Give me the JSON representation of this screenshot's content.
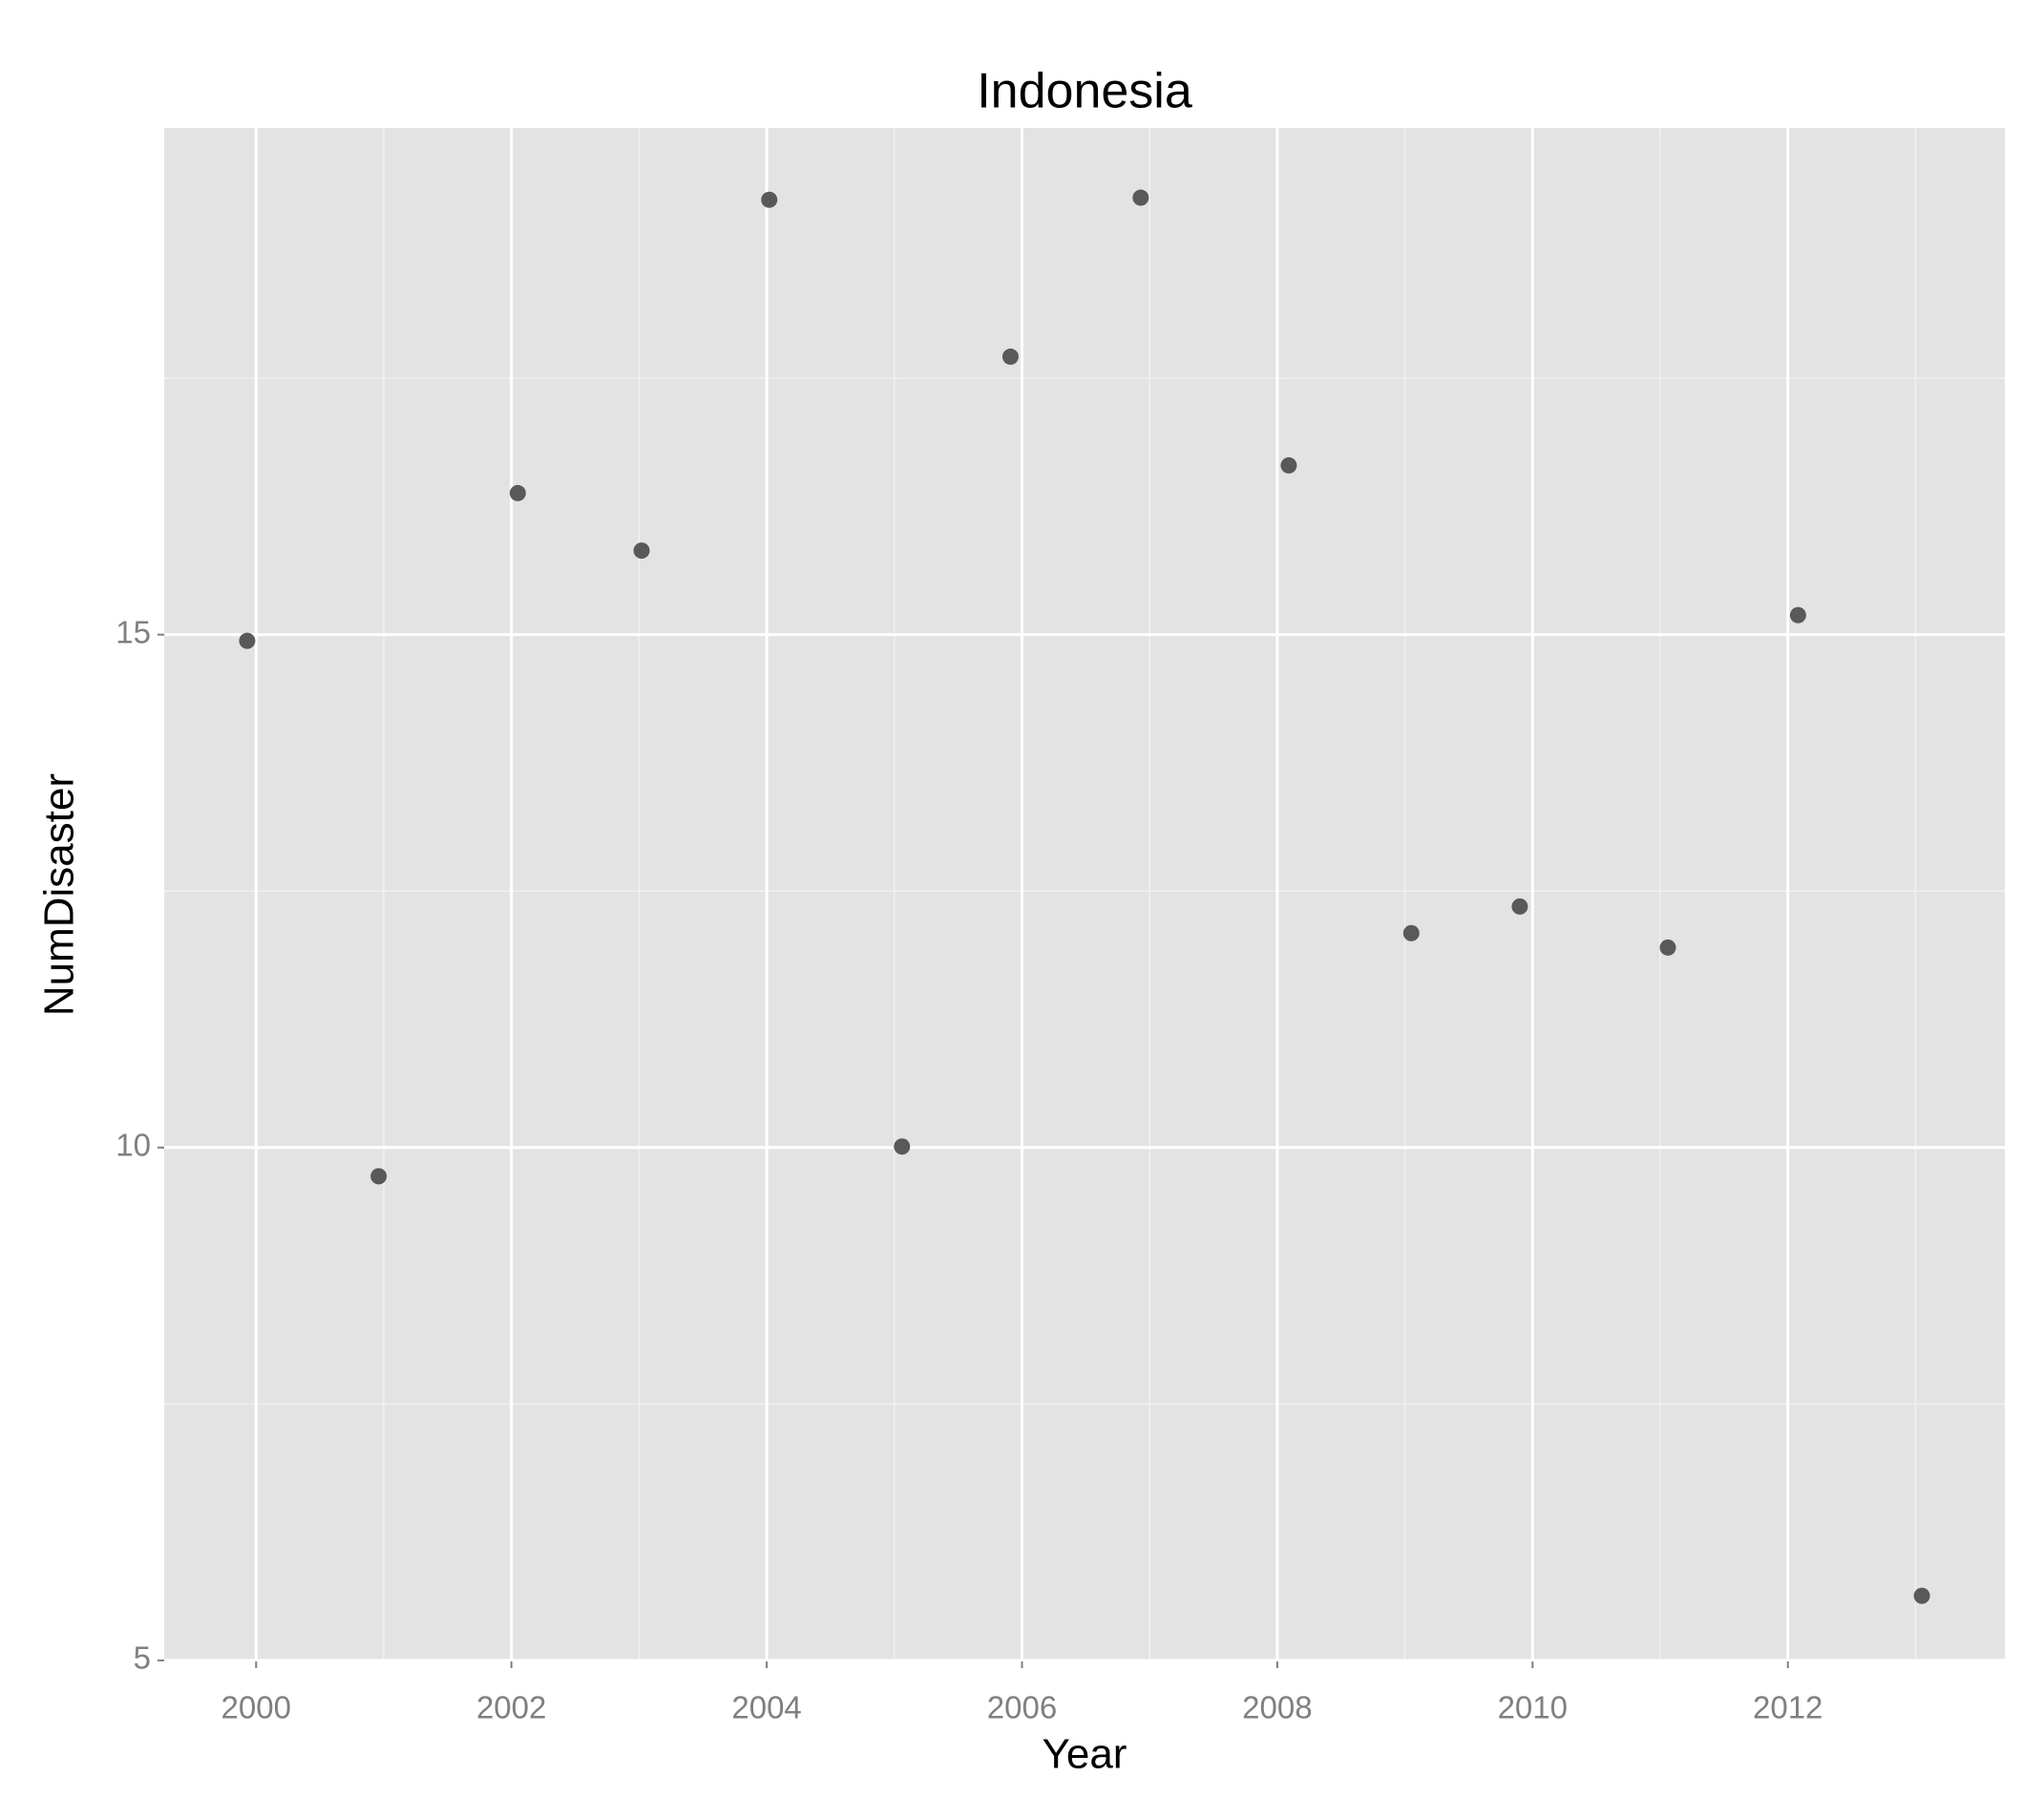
{
  "chart_data": {
    "type": "scatter",
    "title": "Indonesia",
    "x_label": "Year",
    "y_label": "NumDisaster",
    "x": [
      1999.93,
      2000.96,
      2002.05,
      2003.02,
      2004.02,
      2005.06,
      2005.91,
      2006.93,
      2008.09,
      2009.05,
      2009.9,
      2011.06,
      2012.08,
      2013.05
    ],
    "values": [
      14.94,
      9.72,
      16.38,
      15.82,
      19.24,
      10.01,
      17.71,
      19.26,
      16.65,
      12.09,
      12.35,
      11.95,
      15.19,
      5.63
    ],
    "color": "#595959",
    "xlim": [
      1999.28,
      2013.7
    ],
    "xticks": [
      2000,
      2002,
      2004,
      2006,
      2008,
      2010,
      2012
    ],
    "minor_xticks": [
      2001,
      2003,
      2005,
      2007,
      2009,
      2011,
      2013
    ],
    "ylim": [
      4.99,
      19.94
    ],
    "yticks": [
      5,
      10,
      15
    ],
    "minor_yticks": [
      7.5,
      12.5,
      17.5
    ],
    "grid": true
  }
}
